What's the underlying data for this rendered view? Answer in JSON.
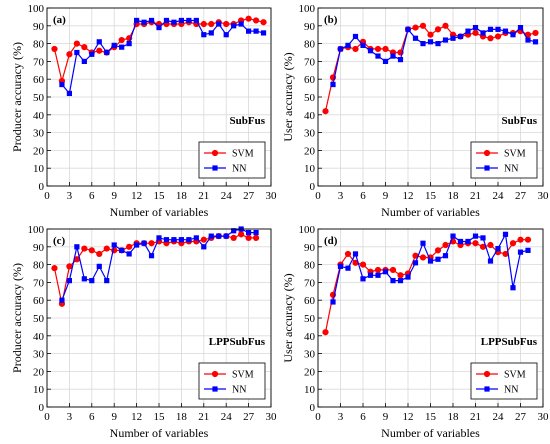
{
  "colors": {
    "svm": "#ff0000",
    "nn": "#0000ff"
  },
  "chart_data": [
    {
      "type": "line",
      "panel": "(a)",
      "subset": "SubFus",
      "xlabel": "Number of variables",
      "ylabel": "Producer accuracy (%)",
      "xlim": [
        0,
        30
      ],
      "ylim": [
        0,
        100
      ],
      "xticks": [
        0,
        3,
        6,
        9,
        12,
        15,
        18,
        21,
        24,
        27,
        30
      ],
      "yticks": [
        0,
        10,
        20,
        30,
        40,
        50,
        60,
        70,
        80,
        90,
        100
      ],
      "grid": true,
      "legend": "bottom-right",
      "x": [
        1,
        2,
        3,
        4,
        5,
        6,
        7,
        8,
        9,
        10,
        11,
        12,
        13,
        14,
        15,
        16,
        17,
        18,
        19,
        20,
        21,
        22,
        23,
        24,
        25,
        26,
        27,
        28,
        29
      ],
      "series": [
        {
          "name": "SVM",
          "marker": "circle",
          "values": [
            77,
            59,
            74,
            80,
            78,
            75,
            76,
            75,
            78,
            82,
            83,
            91,
            91,
            92,
            91,
            91,
            91,
            91,
            92,
            91,
            91,
            91,
            92,
            91,
            91,
            93,
            94,
            93,
            92
          ]
        },
        {
          "name": "NN",
          "marker": "square",
          "values": [
            null,
            57,
            52,
            75,
            70,
            74,
            81,
            75,
            79,
            78,
            80,
            93,
            92,
            93,
            89,
            93,
            92,
            93,
            93,
            93,
            85,
            86,
            91,
            85,
            90,
            91,
            87,
            87,
            86
          ]
        }
      ]
    },
    {
      "type": "line",
      "panel": "(b)",
      "subset": "SubFus",
      "xlabel": "Number of variables",
      "ylabel": "User accuracy (%)",
      "xlim": [
        0,
        30
      ],
      "ylim": [
        0,
        100
      ],
      "xticks": [
        0,
        3,
        6,
        9,
        12,
        15,
        18,
        21,
        24,
        27,
        30
      ],
      "yticks": [
        0,
        10,
        20,
        30,
        40,
        50,
        60,
        70,
        80,
        90,
        100
      ],
      "grid": true,
      "legend": "bottom-right",
      "x": [
        1,
        2,
        3,
        4,
        5,
        6,
        7,
        8,
        9,
        10,
        11,
        12,
        13,
        14,
        15,
        16,
        17,
        18,
        19,
        20,
        21,
        22,
        23,
        24,
        25,
        26,
        27,
        28,
        29
      ],
      "series": [
        {
          "name": "SVM",
          "marker": "circle",
          "values": [
            42,
            61,
            77,
            78,
            77,
            81,
            77,
            77,
            77,
            75,
            75,
            88,
            89,
            90,
            85,
            88,
            90,
            85,
            84,
            85,
            86,
            84,
            83,
            84,
            86,
            86,
            87,
            85,
            86
          ]
        },
        {
          "name": "NN",
          "marker": "square",
          "values": [
            null,
            57,
            77,
            79,
            84,
            79,
            76,
            73,
            70,
            73,
            71,
            88,
            83,
            80,
            81,
            80,
            82,
            83,
            84,
            87,
            89,
            86,
            88,
            88,
            87,
            85,
            89,
            82,
            81
          ]
        }
      ]
    },
    {
      "type": "line",
      "panel": "(c)",
      "subset": "LPPSubFus",
      "xlabel": "Number of variables",
      "ylabel": "Producer accuracy (%)",
      "xlim": [
        0,
        30
      ],
      "ylim": [
        0,
        100
      ],
      "xticks": [
        0,
        3,
        6,
        9,
        12,
        15,
        18,
        21,
        24,
        27,
        30
      ],
      "yticks": [
        0,
        10,
        20,
        30,
        40,
        50,
        60,
        70,
        80,
        90,
        100
      ],
      "grid": true,
      "legend": "bottom-right",
      "x": [
        1,
        2,
        3,
        4,
        5,
        6,
        7,
        8,
        9,
        10,
        11,
        12,
        13,
        14,
        15,
        16,
        17,
        18,
        19,
        20,
        21,
        22,
        23,
        24,
        25,
        26,
        27,
        28
      ],
      "series": [
        {
          "name": "SVM",
          "marker": "circle",
          "values": [
            78,
            58,
            79,
            83,
            89,
            88,
            86,
            89,
            88,
            88,
            90,
            92,
            92,
            92,
            93,
            92,
            93,
            92,
            93,
            93,
            94,
            95,
            96,
            96,
            95,
            97,
            95,
            95
          ]
        },
        {
          "name": "NN",
          "marker": "square",
          "values": [
            null,
            60,
            71,
            90,
            72,
            71,
            79,
            71,
            91,
            88,
            86,
            91,
            92,
            85,
            95,
            94,
            94,
            94,
            94,
            95,
            90,
            96,
            96,
            96,
            99,
            100,
            98,
            98
          ]
        }
      ]
    },
    {
      "type": "line",
      "panel": "(d)",
      "subset": "LPPSubFus",
      "xlabel": "Number of variables",
      "ylabel": "User accuracy (%)",
      "xlim": [
        0,
        30
      ],
      "ylim": [
        0,
        100
      ],
      "xticks": [
        0,
        3,
        6,
        9,
        12,
        15,
        18,
        21,
        24,
        27,
        30
      ],
      "yticks": [
        0,
        10,
        20,
        30,
        40,
        50,
        60,
        70,
        80,
        90,
        100
      ],
      "grid": true,
      "legend": "bottom-right",
      "x": [
        1,
        2,
        3,
        4,
        5,
        6,
        7,
        8,
        9,
        10,
        11,
        12,
        13,
        14,
        15,
        16,
        17,
        18,
        19,
        20,
        21,
        22,
        23,
        24,
        25,
        26,
        27,
        28
      ],
      "series": [
        {
          "name": "SVM",
          "marker": "circle",
          "values": [
            42,
            63,
            80,
            86,
            81,
            80,
            76,
            77,
            77,
            77,
            74,
            75,
            85,
            84,
            84,
            88,
            91,
            93,
            91,
            92,
            92,
            90,
            91,
            87,
            86,
            92,
            94,
            94
          ]
        },
        {
          "name": "NN",
          "marker": "square",
          "values": [
            null,
            59,
            79,
            78,
            86,
            72,
            74,
            74,
            76,
            71,
            71,
            73,
            81,
            92,
            82,
            83,
            85,
            96,
            93,
            93,
            96,
            95,
            82,
            89,
            97,
            67,
            87,
            88
          ]
        }
      ]
    }
  ]
}
